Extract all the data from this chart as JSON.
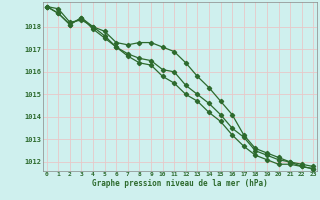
{
  "title": "Graphe pression niveau de la mer (hPa)",
  "bg_color": "#cff0ee",
  "grid_color": "#e8c8c8",
  "line_color": "#2d6a2d",
  "marker_color": "#2d6a2d",
  "label_color": "#2d6a2d",
  "xlim": [
    -0.3,
    23.3
  ],
  "ylim": [
    1011.6,
    1019.1
  ],
  "yticks": [
    1012,
    1013,
    1014,
    1015,
    1016,
    1017,
    1018
  ],
  "xticks": [
    0,
    1,
    2,
    3,
    4,
    5,
    6,
    7,
    8,
    9,
    10,
    11,
    12,
    13,
    14,
    15,
    16,
    17,
    18,
    19,
    20,
    21,
    22,
    23
  ],
  "series": [
    [
      1018.9,
      1018.8,
      1018.2,
      1018.3,
      1018.0,
      1017.8,
      1017.3,
      1017.2,
      1017.3,
      1017.3,
      1017.1,
      1016.9,
      1016.4,
      1015.8,
      1015.3,
      1014.7,
      1014.1,
      1013.2,
      1012.6,
      1012.4,
      1012.2,
      1012.0,
      1011.9,
      1011.8
    ],
    [
      1018.9,
      1018.6,
      1018.1,
      1018.4,
      1018.0,
      1017.6,
      1017.1,
      1016.8,
      1016.6,
      1016.5,
      1016.1,
      1016.0,
      1015.4,
      1015.0,
      1014.6,
      1014.1,
      1013.5,
      1013.1,
      1012.5,
      1012.3,
      1012.1,
      1012.0,
      1011.8,
      1011.7
    ],
    [
      1018.9,
      1018.6,
      1018.1,
      1018.4,
      1017.9,
      1017.5,
      1017.1,
      1016.7,
      1016.4,
      1016.3,
      1015.8,
      1015.5,
      1015.0,
      1014.7,
      1014.2,
      1013.8,
      1013.2,
      1012.7,
      1012.3,
      1012.1,
      1011.9,
      1011.9,
      1011.8,
      1011.7
    ]
  ]
}
